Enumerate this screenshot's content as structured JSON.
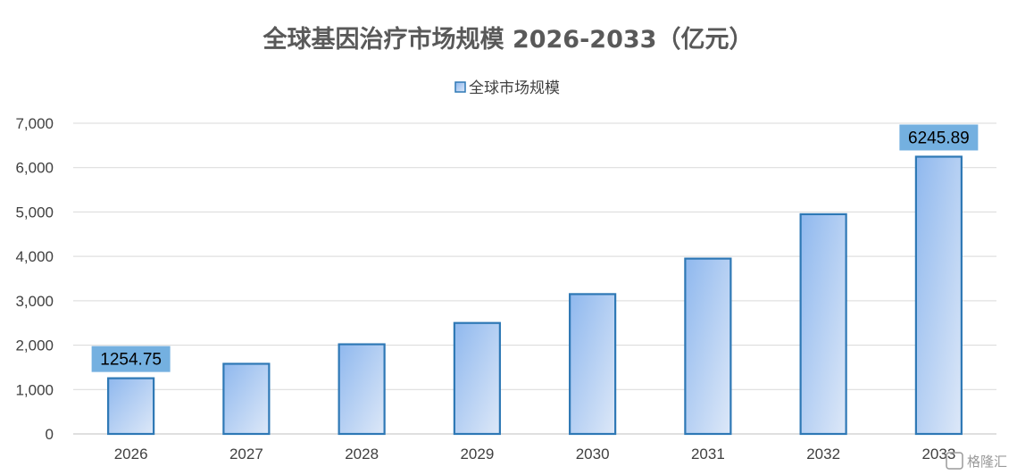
{
  "chart_data": {
    "type": "bar",
    "title": "全球基因治疗市场规模 2026-2033（亿元）",
    "xlabel": "",
    "ylabel": "",
    "categories": [
      "2026",
      "2027",
      "2028",
      "2029",
      "2030",
      "2031",
      "2032",
      "2033"
    ],
    "series": [
      {
        "name": "全球市场规模",
        "values": [
          1254.75,
          1580,
          2020,
          2500,
          3150,
          3950,
          4950,
          6245.89
        ]
      }
    ],
    "data_labels": [
      {
        "index": 0,
        "text": "1254.75"
      },
      {
        "index": 7,
        "text": "6245.89"
      }
    ],
    "ylim": [
      0,
      7000
    ],
    "yticks": [
      "0",
      "1,000",
      "2,000",
      "3,000",
      "4,000",
      "5,000",
      "6,000",
      "7,000"
    ],
    "grid": true,
    "legend_position": "top",
    "colors": {
      "bar_fill_start": "#8FB8EE",
      "bar_fill_end": "#DDE8F8",
      "bar_stroke": "#2E78B5",
      "label_bg": "#74B0E0",
      "grid": "#D9D9D9"
    }
  },
  "watermark": {
    "text": "格隆汇"
  }
}
